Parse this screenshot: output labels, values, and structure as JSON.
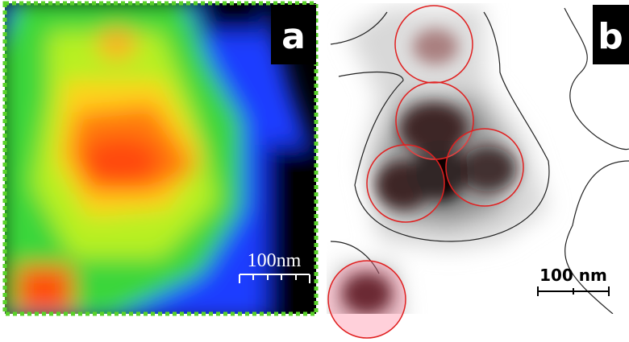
{
  "panels": [
    {
      "label": "a",
      "scale_bar": "100nm"
    },
    {
      "label": "b",
      "scale_bar": "100 nm"
    }
  ]
}
